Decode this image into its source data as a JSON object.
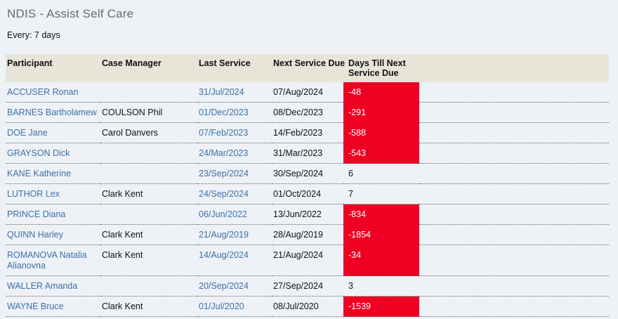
{
  "page": {
    "title": "NDIS - Assist Self Care",
    "frequency": "Every: 7 days"
  },
  "table": {
    "columns": {
      "participant": "Participant",
      "case_manager": "Case Manager",
      "last_service": "Last Service",
      "next_service_due": "Next Service Due",
      "days_till_next": "Days Till Next Service Due"
    },
    "rows": [
      {
        "participant": "ACCUSER Ronan",
        "case_manager": "",
        "last_service": "31/Jul/2024",
        "next_service_due": "07/Aug/2024",
        "days_till_next": "-48",
        "overdue": true
      },
      {
        "participant": "BARNES Bartholamew",
        "case_manager": "COULSON Phil",
        "last_service": "01/Dec/2023",
        "next_service_due": "08/Dec/2023",
        "days_till_next": "-291",
        "overdue": true
      },
      {
        "participant": "DOE Jane",
        "case_manager": "Carol Danvers",
        "last_service": "07/Feb/2023",
        "next_service_due": "14/Feb/2023",
        "days_till_next": "-588",
        "overdue": true
      },
      {
        "participant": "GRAYSON Dick",
        "case_manager": "",
        "last_service": "24/Mar/2023",
        "next_service_due": "31/Mar/2023",
        "days_till_next": "-543",
        "overdue": true
      },
      {
        "participant": "KANE Katherine",
        "case_manager": "",
        "last_service": "23/Sep/2024",
        "next_service_due": "30/Sep/2024",
        "days_till_next": "6",
        "overdue": false
      },
      {
        "participant": "LUTHOR Lex",
        "case_manager": "Clark Kent",
        "last_service": "24/Sep/2024",
        "next_service_due": "01/Oct/2024",
        "days_till_next": "7",
        "overdue": false
      },
      {
        "participant": "PRINCE Diana",
        "case_manager": "",
        "last_service": "06/Jun/2022",
        "next_service_due": "13/Jun/2022",
        "days_till_next": "-834",
        "overdue": true
      },
      {
        "participant": "QUINN Harley",
        "case_manager": "Clark Kent",
        "last_service": "21/Aug/2019",
        "next_service_due": "28/Aug/2019",
        "days_till_next": "-1854",
        "overdue": true
      },
      {
        "participant": "ROMANOVA Natalia Alianovna",
        "case_manager": "Clark Kent",
        "last_service": "14/Aug/2024",
        "next_service_due": "21/Aug/2024",
        "days_till_next": "-34",
        "overdue": true
      },
      {
        "participant": "WALLER Amanda",
        "case_manager": "",
        "last_service": "20/Sep/2024",
        "next_service_due": "27/Sep/2024",
        "days_till_next": "3",
        "overdue": false
      },
      {
        "participant": "WAYNE Bruce",
        "case_manager": "Clark Kent",
        "last_service": "01/Jul/2020",
        "next_service_due": "08/Jul/2020",
        "days_till_next": "-1539",
        "overdue": true
      }
    ]
  },
  "colors": {
    "page_bg": "#eef1f6",
    "header_bg": "#e6e5d8",
    "overdue_bg": "#ee0022",
    "link_blue": "#3a72a8",
    "title_gray": "#6b6b6b"
  }
}
